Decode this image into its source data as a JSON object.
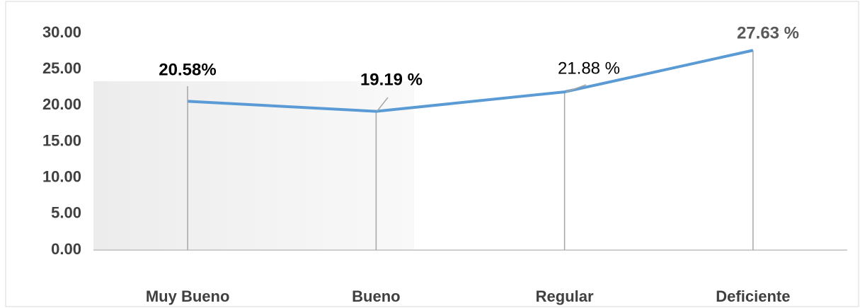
{
  "chart_data": {
    "type": "line",
    "categories": [
      "Muy Bueno",
      "Bueno",
      "Regular",
      "Deficiente"
    ],
    "series": [
      {
        "name": "Series",
        "color": "#5b9bd5",
        "values": [
          20.58,
          19.19,
          21.88,
          27.63
        ],
        "value_labels": [
          "20.58%",
          "19.19 %",
          "21.88 %",
          "27.63 %"
        ]
      }
    ],
    "ylim": [
      0,
      30
    ],
    "yticks": [
      {
        "value": 0,
        "label": "0.00"
      },
      {
        "value": 5,
        "label": "5.00"
      },
      {
        "value": 10,
        "label": "10.00"
      },
      {
        "value": 15,
        "label": "15.00"
      },
      {
        "value": 20,
        "label": "20.00"
      },
      {
        "value": 25,
        "label": "25.00"
      },
      {
        "value": 30,
        "label": "30.00"
      }
    ],
    "grid": false
  }
}
